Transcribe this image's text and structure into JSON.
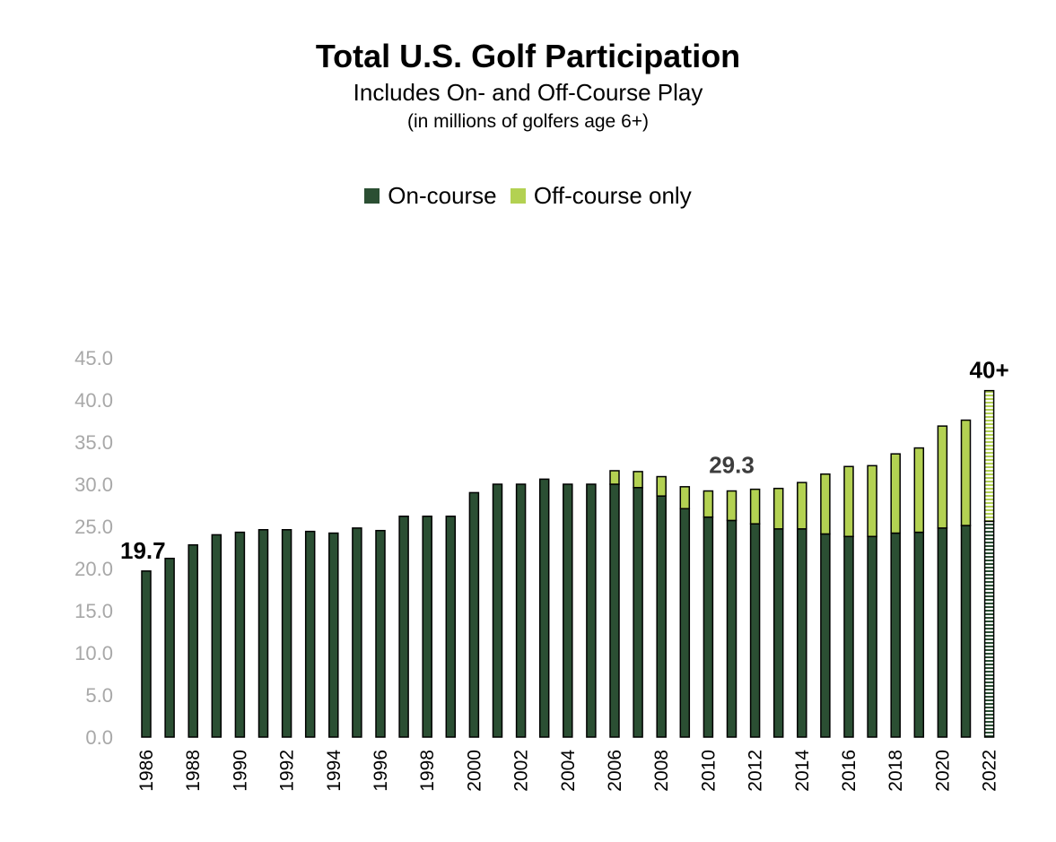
{
  "chart_data": {
    "type": "bar",
    "stacked": true,
    "title": "Total U.S. Golf Participation",
    "subtitle": "Includes On- and Off-Course Play",
    "units": "(in millions of golfers age 6+)",
    "legend": {
      "on_course": "On-course",
      "off_course": "Off-course only"
    },
    "colors": {
      "on_course": "#2b4f33",
      "off_course": "#b3d152",
      "axis_text": "#a8a8a8"
    },
    "ylim": [
      0,
      45
    ],
    "yticks": [
      "0.0",
      "5.0",
      "10.0",
      "15.0",
      "20.0",
      "25.0",
      "30.0",
      "35.0",
      "40.0",
      "45.0"
    ],
    "categories": [
      "1986",
      "1987",
      "1988",
      "1989",
      "1990",
      "1991",
      "1992",
      "1993",
      "1994",
      "1995",
      "1996",
      "1997",
      "1998",
      "1999",
      "2000",
      "2001",
      "2002",
      "2003",
      "2004",
      "2005",
      "2006",
      "2007",
      "2008",
      "2009",
      "2010",
      "2011",
      "2012",
      "2013",
      "2014",
      "2015",
      "2016",
      "2017",
      "2018",
      "2019",
      "2020",
      "2021",
      "2022"
    ],
    "xtick_labels": [
      "1986",
      "",
      "1988",
      "",
      "1990",
      "",
      "1992",
      "",
      "1994",
      "",
      "1996",
      "",
      "1998",
      "",
      "2000",
      "",
      "2002",
      "",
      "2004",
      "",
      "2006",
      "",
      "2008",
      "",
      "2010",
      "",
      "2012",
      "",
      "2014",
      "",
      "2016",
      "",
      "2018",
      "",
      "2020",
      "",
      "2022"
    ],
    "series": [
      {
        "name": "On-course",
        "values": [
          19.7,
          21.2,
          22.8,
          24.0,
          24.3,
          24.6,
          24.6,
          24.4,
          24.2,
          24.8,
          24.5,
          26.2,
          26.2,
          26.2,
          29.0,
          30.0,
          30.0,
          30.6,
          30.0,
          30.0,
          30.0,
          29.6,
          28.6,
          27.1,
          26.1,
          25.7,
          25.3,
          24.7,
          24.7,
          24.1,
          23.8,
          23.8,
          24.2,
          24.3,
          24.8,
          25.1,
          25.6
        ]
      },
      {
        "name": "Off-course only",
        "values": [
          0,
          0,
          0,
          0,
          0,
          0,
          0,
          0,
          0,
          0,
          0,
          0,
          0,
          0,
          0,
          0,
          0,
          0,
          0,
          0,
          1.6,
          1.9,
          2.3,
          2.6,
          3.1,
          3.5,
          4.1,
          4.8,
          5.5,
          7.1,
          8.3,
          8.4,
          9.4,
          10.0,
          12.1,
          12.5,
          15.5
        ]
      }
    ],
    "annotations": [
      {
        "text": "19.7",
        "year": "1986",
        "style": "bold-black"
      },
      {
        "text": "29.3",
        "year": "2011",
        "style": "bold-gray"
      },
      {
        "text": "40+",
        "year": "2022",
        "style": "bold-black"
      }
    ],
    "projected_category": "2022"
  }
}
